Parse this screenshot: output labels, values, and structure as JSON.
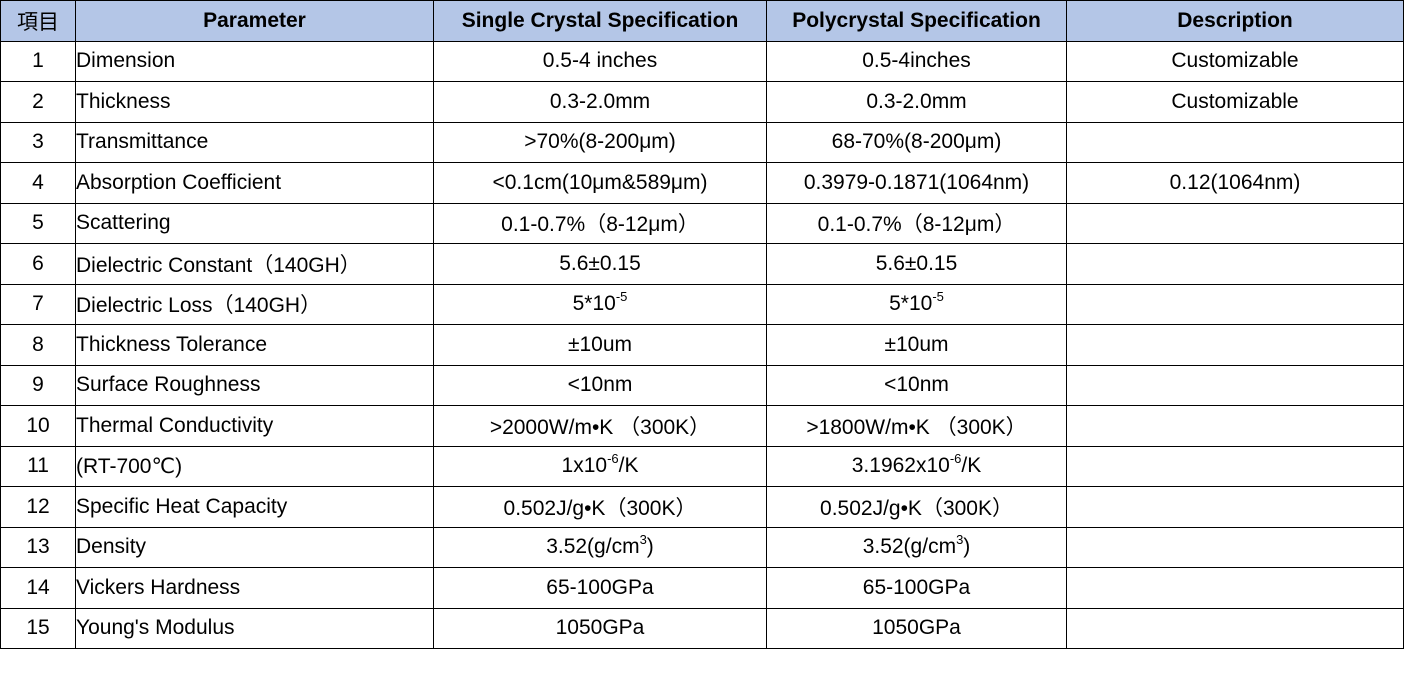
{
  "header": {
    "index": "項目",
    "parameter": "Parameter",
    "single": "Single Crystal Specification",
    "poly": "Polycrystal Specification",
    "description": "Description"
  },
  "rows": [
    {
      "n": "1",
      "param": "Dimension",
      "single": "0.5-4 inches",
      "poly": "0.5-4inches",
      "desc": "Customizable"
    },
    {
      "n": "2",
      "param": "Thickness",
      "single": "0.3-2.0mm",
      "poly": "0.3-2.0mm",
      "desc": "Customizable"
    },
    {
      "n": "3",
      "param": "Transmittance",
      "single": ">70%(8-200μm)",
      "poly": "68-70%(8-200μm)",
      "desc": ""
    },
    {
      "n": "4",
      "param": "Absorption Coefficient",
      "single": "<0.1cm(10μm&589μm)",
      "poly": "0.3979-0.1871(1064nm)",
      "desc": "0.12(1064nm)"
    },
    {
      "n": "5",
      "param": "Scattering",
      "single": "0.1-0.7%（8-12μm）",
      "poly": "0.1-0.7%（8-12μm）",
      "desc": ""
    },
    {
      "n": "6",
      "param": "Dielectric Constant（140GH）",
      "single": "5.6±0.15",
      "poly": "5.6±0.15",
      "desc": ""
    },
    {
      "n": "7",
      "param": "Dielectric Loss（140GH）",
      "single_base": "5*10",
      "single_sup": "-5",
      "poly_base": "5*10",
      "poly_sup": "-5",
      "desc": ""
    },
    {
      "n": "8",
      "param": "Thickness Tolerance",
      "single": "±10um",
      "poly": "±10um",
      "desc": ""
    },
    {
      "n": "9",
      "param": "Surface Roughness",
      "single": "<10nm",
      "poly": "<10nm",
      "desc": ""
    },
    {
      "n": "10",
      "param": "Thermal Conductivity",
      "single": ">2000W/m•K （300K）",
      "poly": ">1800W/m•K （300K）",
      "desc": ""
    },
    {
      "n": "11",
      "param": "(RT-700℃)",
      "single_base": "1x10",
      "single_sup": "-6",
      "single_tail": "/K",
      "poly_base": "3.1962x10",
      "poly_sup": "-6",
      "poly_tail": "/K",
      "desc": ""
    },
    {
      "n": "12",
      "param": "Specific Heat Capacity",
      "single": "0.502J/g•K（300K）",
      "poly": "0.502J/g•K（300K）",
      "desc": ""
    },
    {
      "n": "13",
      "param": "Density",
      "single_base": "3.52(g/cm",
      "single_sup": "3",
      "single_tail": ")",
      "poly_base": "3.52(g/cm",
      "poly_sup": "3",
      "poly_tail": ")",
      "desc": ""
    },
    {
      "n": "14",
      "param": "Vickers Hardness",
      "single": "65-100GPa",
      "poly": "65-100GPa",
      "desc": ""
    },
    {
      "n": "15",
      "param": "Young's Modulus",
      "single": "1050GPa",
      "poly": "1050GPa",
      "desc": ""
    }
  ]
}
